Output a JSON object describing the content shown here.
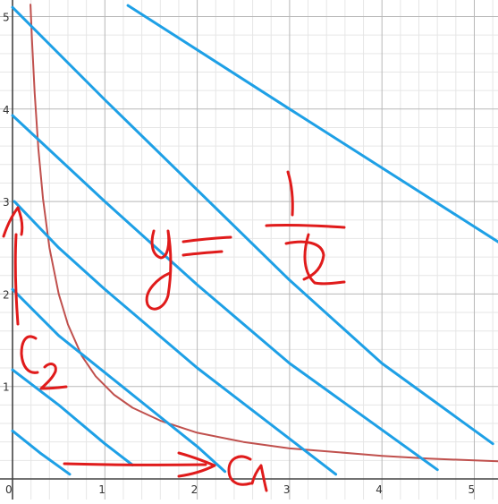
{
  "chart_data": {
    "type": "line",
    "title": "",
    "xlabel": "",
    "ylabel": "",
    "xlim": [
      0,
      5.3
    ],
    "ylim": [
      0,
      5.15
    ],
    "grid": true,
    "x_ticks": [
      "0",
      "1",
      "2",
      "3",
      "4",
      "5"
    ],
    "y_ticks": [
      "1",
      "2",
      "3",
      "4",
      "5"
    ],
    "series": [
      {
        "kind": "curve",
        "color": "#c0504d",
        "x": [
          0.195,
          0.21,
          0.24,
          0.28,
          0.33,
          0.4,
          0.5,
          0.6,
          0.75,
          0.9,
          1.1,
          1.3,
          1.6,
          2.0,
          2.5,
          3.0,
          3.5,
          4.0,
          4.5,
          5.0,
          5.3
        ],
        "y": [
          5.13,
          4.76,
          4.17,
          3.57,
          3.03,
          2.5,
          2.0,
          1.67,
          1.33,
          1.11,
          0.91,
          0.77,
          0.63,
          0.5,
          0.4,
          0.33,
          0.29,
          0.25,
          0.22,
          0.2,
          0.19
        ]
      },
      {
        "kind": "line",
        "color": "#1ea0e6",
        "x": [
          1.25,
          3.0,
          5.28
        ],
        "y": [
          5.12,
          4.0,
          2.55
        ]
      },
      {
        "kind": "line",
        "color": "#1ea0e6",
        "x": [
          0.0,
          1.0,
          3.0,
          4.0,
          5.2
        ],
        "y": [
          5.1,
          4.1,
          2.15,
          1.25,
          0.38
        ]
      },
      {
        "kind": "line",
        "color": "#1ea0e6",
        "x": [
          0.0,
          1.0,
          2.0,
          3.0,
          4.6
        ],
        "y": [
          3.93,
          3.0,
          2.1,
          1.25,
          0.1
        ]
      },
      {
        "kind": "line",
        "color": "#1ea0e6",
        "x": [
          0.02,
          0.5,
          1.0,
          2.0,
          3.5
        ],
        "y": [
          3.0,
          2.5,
          2.05,
          1.2,
          0.05
        ]
      },
      {
        "kind": "line",
        "color": "#1ea0e6",
        "x": [
          0.0,
          0.5,
          1.0,
          1.5,
          2.0,
          2.3
        ],
        "y": [
          2.05,
          1.55,
          1.15,
          0.75,
          0.35,
          0.08
        ]
      },
      {
        "kind": "line",
        "color": "#1ea0e6",
        "x": [
          0.0,
          0.5,
          1.0,
          1.3
        ],
        "y": [
          1.18,
          0.8,
          0.38,
          0.15
        ]
      },
      {
        "kind": "line",
        "color": "#1ea0e6",
        "x": [
          0.0,
          0.3,
          0.62
        ],
        "y": [
          0.52,
          0.28,
          0.05
        ]
      }
    ],
    "annotations": [
      {
        "kind": "handwritten",
        "color": "#e01b1b",
        "reads": "y = 1/x"
      },
      {
        "kind": "handwritten",
        "color": "#e01b1b",
        "reads": "C2"
      },
      {
        "kind": "handwritten",
        "color": "#e01b1b",
        "reads": "C1"
      }
    ]
  }
}
